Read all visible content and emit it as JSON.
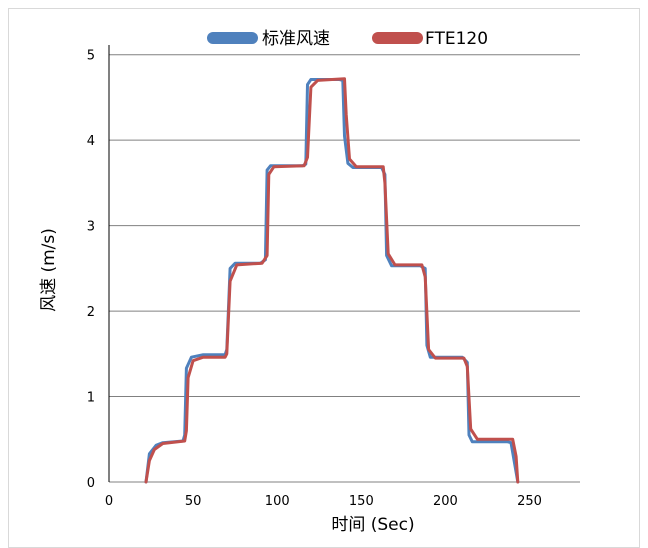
{
  "chart_data": {
    "type": "line",
    "title": "",
    "xlabel": "时间 (Sec)",
    "ylabel": "风速 (m/s)",
    "xlim": [
      0,
      280
    ],
    "ylim": [
      0,
      5.5
    ],
    "x_ticks": [
      "0",
      "50",
      "100",
      "150",
      "200",
      "250"
    ],
    "y_ticks": [
      "0",
      "1",
      "2",
      "3",
      "4",
      "5"
    ],
    "grid": "horizontal",
    "legend_position": "top",
    "series": [
      {
        "name": "标准风速",
        "color": "#4f81bd",
        "points": [
          [
            22,
            0
          ],
          [
            24,
            0.33
          ],
          [
            28,
            0.43
          ],
          [
            32,
            0.46
          ],
          [
            44,
            0.48
          ],
          [
            45,
            0.55
          ],
          [
            46,
            1.33
          ],
          [
            49,
            1.46
          ],
          [
            56,
            1.49
          ],
          [
            65,
            1.49
          ],
          [
            69,
            1.49
          ],
          [
            70,
            1.55
          ],
          [
            72,
            2.5
          ],
          [
            75,
            2.56
          ],
          [
            90,
            2.56
          ],
          [
            93,
            2.6
          ],
          [
            94,
            3.65
          ],
          [
            96,
            3.7
          ],
          [
            115,
            3.7
          ],
          [
            117,
            3.72
          ],
          [
            118,
            4.65
          ],
          [
            120,
            4.71
          ],
          [
            137,
            4.71
          ],
          [
            139,
            4.7
          ],
          [
            140,
            4.05
          ],
          [
            142,
            3.73
          ],
          [
            145,
            3.68
          ],
          [
            162,
            3.68
          ],
          [
            164,
            3.6
          ],
          [
            165,
            2.65
          ],
          [
            168,
            2.53
          ],
          [
            185,
            2.53
          ],
          [
            188,
            2.5
          ],
          [
            189,
            1.6
          ],
          [
            191,
            1.46
          ],
          [
            210,
            1.46
          ],
          [
            213,
            1.4
          ],
          [
            214,
            0.55
          ],
          [
            216,
            0.47
          ],
          [
            237,
            0.47
          ],
          [
            239,
            0.46
          ],
          [
            243,
            0
          ]
        ]
      },
      {
        "name": "FTE120",
        "color": "#c0504d",
        "points": [
          [
            22,
            0
          ],
          [
            24,
            0.25
          ],
          [
            27,
            0.38
          ],
          [
            32,
            0.45
          ],
          [
            45,
            0.48
          ],
          [
            46,
            0.6
          ],
          [
            47,
            1.22
          ],
          [
            50,
            1.42
          ],
          [
            56,
            1.46
          ],
          [
            69,
            1.46
          ],
          [
            70,
            1.5
          ],
          [
            72,
            2.35
          ],
          [
            76,
            2.54
          ],
          [
            91,
            2.56
          ],
          [
            94,
            2.65
          ],
          [
            95,
            3.6
          ],
          [
            98,
            3.69
          ],
          [
            116,
            3.7
          ],
          [
            118,
            3.8
          ],
          [
            120,
            4.62
          ],
          [
            124,
            4.7
          ],
          [
            140,
            4.72
          ],
          [
            141,
            4.3
          ],
          [
            143,
            3.78
          ],
          [
            147,
            3.69
          ],
          [
            163,
            3.69
          ],
          [
            164,
            3.5
          ],
          [
            166,
            2.67
          ],
          [
            170,
            2.54
          ],
          [
            186,
            2.54
          ],
          [
            188,
            2.4
          ],
          [
            190,
            1.55
          ],
          [
            194,
            1.45
          ],
          [
            211,
            1.45
          ],
          [
            213,
            1.35
          ],
          [
            215,
            0.62
          ],
          [
            219,
            0.5
          ],
          [
            240,
            0.5
          ],
          [
            242,
            0.3
          ],
          [
            243,
            0
          ]
        ]
      }
    ]
  }
}
